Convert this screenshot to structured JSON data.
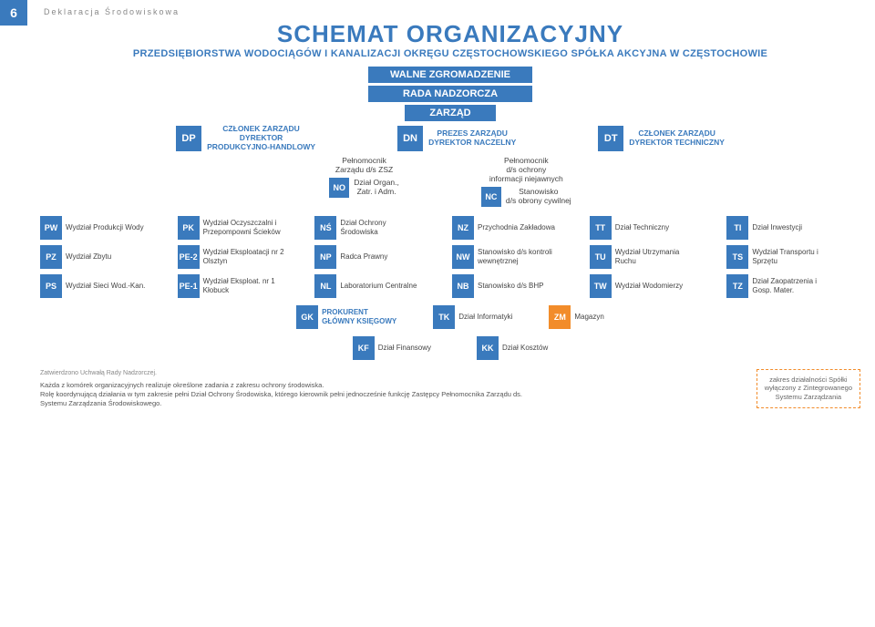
{
  "page": {
    "number": "6",
    "header": "Deklaracja Środowiskowa"
  },
  "title": "SCHEMAT ORGANIZACYJNY",
  "subtitle": "PRZEDSIĘBIORSTWA WODOCIĄGÓW I KANALIZACJI OKRĘGU CZĘSTOCHOWSKIEGO SPÓŁKA AKCYJNA W CZĘSTOCHOWIE",
  "governance": {
    "wz": "WALNE ZGROMADZENIE",
    "rn": "RADA NADZORCZA",
    "zarzad": "ZARZĄD"
  },
  "directors": {
    "dp": {
      "code": "DP",
      "label": "CZŁONEK ZARZĄDU\nDYREKTOR\nPRODUKCYJNO-HANDLOWY"
    },
    "dn": {
      "code": "DN",
      "label": "PREZES ZARZĄDU\nDYREKTOR NACZELNY"
    },
    "dt": {
      "code": "DT",
      "label": "CZŁONEK ZARZĄDU\nDYREKTOR TECHNICZNY"
    }
  },
  "mid": {
    "zsz": "Pełnomocnik\nZarządu d/s ZSZ",
    "ochrona": "Pełnomocnik\nd/s ochrony\ninformacji niejawnych",
    "no": {
      "code": "NO",
      "label": "Dział Organ.,\nZatr. i Adm."
    },
    "nc": {
      "code": "NC",
      "label": "Stanowisko\nd/s obrony cywilnej"
    }
  },
  "rows": [
    [
      {
        "code": "PW",
        "label": "Wydział Produkcji Wody",
        "color": "#3a7abd"
      },
      {
        "code": "PK",
        "label": "Wydział Oczyszczalni i Przepompowni Ścieków",
        "color": "#3a7abd"
      },
      {
        "code": "NŚ",
        "label": "Dział Ochrony Środowiska",
        "color": "#3a7abd"
      },
      {
        "code": "NZ",
        "label": "Przychodnia Zakładowa",
        "color": "#3a7abd"
      },
      {
        "code": "TT",
        "label": "Dział Techniczny",
        "color": "#3a7abd"
      },
      {
        "code": "TI",
        "label": "Dział Inwestycji",
        "color": "#3a7abd"
      }
    ],
    [
      {
        "code": "PZ",
        "label": "Wydział Zbytu",
        "color": "#3a7abd"
      },
      {
        "code": "PE-2",
        "label": "Wydział Eksploatacji nr 2 Olsztyn",
        "color": "#3a7abd"
      },
      {
        "code": "NP",
        "label": "Radca Prawny",
        "color": "#3a7abd"
      },
      {
        "code": "NW",
        "label": "Stanowisko d/s kontroli wewnętrznej",
        "color": "#3a7abd"
      },
      {
        "code": "TU",
        "label": "Wydział Utrzymania Ruchu",
        "color": "#3a7abd"
      },
      {
        "code": "TS",
        "label": "Wydział Transportu i Sprzętu",
        "color": "#3a7abd"
      }
    ],
    [
      {
        "code": "PS",
        "label": "Wydział Sieci Wod.-Kan.",
        "color": "#3a7abd"
      },
      {
        "code": "PE-1",
        "label": "Wydział Eksploat. nr 1 Kłobuck",
        "color": "#3a7abd"
      },
      {
        "code": "NL",
        "label": "Laboratorium Centralne",
        "color": "#3a7abd"
      },
      {
        "code": "NB",
        "label": "Stanowisko d/s BHP",
        "color": "#3a7abd"
      },
      {
        "code": "TW",
        "label": "Wydział Wodomierzy",
        "color": "#3a7abd"
      },
      {
        "code": "TZ",
        "label": "Dział Zaopatrzenia i Gosp. Mater.",
        "color": "#3a7abd"
      }
    ]
  ],
  "bottom": {
    "gk": {
      "code": "GK",
      "label": "PROKURENT\nGŁÓWNY KSIĘGOWY",
      "color": "#3a7abd"
    },
    "tk": {
      "code": "TK",
      "label": "Dział Informatyki",
      "color": "#3a7abd"
    },
    "zm": {
      "code": "ZM",
      "label": "Magazyn",
      "color": "#f28c2a"
    }
  },
  "kf": {
    "kf": {
      "code": "KF",
      "label": "Dział Finansowy",
      "color": "#3a7abd"
    },
    "kk": {
      "code": "KK",
      "label": "Dział Kosztów",
      "color": "#3a7abd"
    }
  },
  "footnote": {
    "approved": "Zatwierdzono Uchwałą Rady Nadzorczej.",
    "p1": "Każda z komórek organizacyjnych realizuje określone zadania z zakresu ochrony środowiska.",
    "p2": "Rolę koordynującą działania w tym zakresie pełni Dział Ochrony Środowiska, którego kierownik pełni jednocześnie funkcję Zastępcy Pełnomocnika Zarządu ds. Systemu Zarządzania Środowiskowego."
  },
  "legend": "zakres działalności Spółki\nwyłączony z Zintegrowanego\nSystemu Zarządzania",
  "colors": {
    "primary": "#3a7abd",
    "accent": "#f28c2a",
    "text": "#444444",
    "bg": "#ffffff"
  }
}
